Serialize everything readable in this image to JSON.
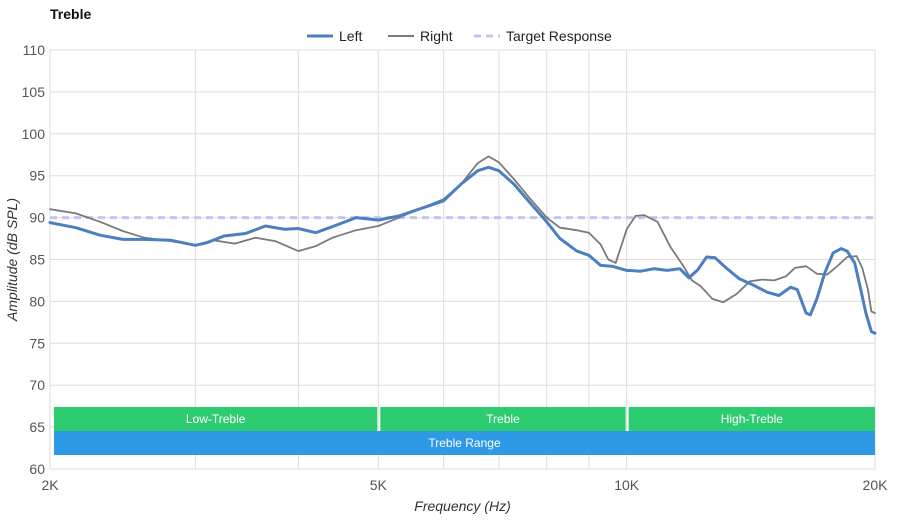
{
  "chart_data": {
    "type": "line",
    "title": "Treble",
    "xlabel": "Frequency (Hz)",
    "ylabel": "Amplitude (dB SPL)",
    "xscale": "log",
    "xlim": [
      2000,
      20000
    ],
    "ylim": [
      60,
      110
    ],
    "yticks": [
      60,
      65,
      70,
      75,
      80,
      85,
      90,
      95,
      100,
      105,
      110
    ],
    "xticks": [
      {
        "value": 2000,
        "label": "2K"
      },
      {
        "value": 5000,
        "label": "5K"
      },
      {
        "value": 10000,
        "label": "10K"
      },
      {
        "value": 20000,
        "label": "20K"
      }
    ],
    "grid_x": [
      2000,
      3000,
      4000,
      5000,
      6000,
      7000,
      8000,
      9000,
      10000,
      20000
    ],
    "grid": true,
    "legend": {
      "position": "top-center",
      "items": [
        {
          "name": "Left",
          "color": "#4a7fc1",
          "style": "solid-thick"
        },
        {
          "name": "Right",
          "color": "#7a7a7a",
          "style": "solid-thin"
        },
        {
          "name": "Target Response",
          "color": "#c4c4f4",
          "style": "dashed"
        }
      ]
    },
    "series": [
      {
        "name": "Left",
        "color": "#4a7fc1",
        "points": [
          [
            2000,
            89.4
          ],
          [
            2150,
            88.8
          ],
          [
            2300,
            87.9
          ],
          [
            2450,
            87.4
          ],
          [
            2600,
            87.4
          ],
          [
            2800,
            87.3
          ],
          [
            3000,
            86.7
          ],
          [
            3100,
            87.0
          ],
          [
            3250,
            87.8
          ],
          [
            3450,
            88.1
          ],
          [
            3650,
            89.0
          ],
          [
            3850,
            88.6
          ],
          [
            4000,
            88.7
          ],
          [
            4200,
            88.2
          ],
          [
            4450,
            89.1
          ],
          [
            4700,
            90.0
          ],
          [
            5000,
            89.7
          ],
          [
            5300,
            90.2
          ],
          [
            5600,
            91.0
          ],
          [
            6000,
            92.0
          ],
          [
            6300,
            94.0
          ],
          [
            6600,
            95.6
          ],
          [
            6800,
            96.0
          ],
          [
            7000,
            95.6
          ],
          [
            7300,
            94.0
          ],
          [
            7600,
            92.0
          ],
          [
            8000,
            89.5
          ],
          [
            8300,
            87.5
          ],
          [
            8700,
            86.0
          ],
          [
            9000,
            85.5
          ],
          [
            9300,
            84.3
          ],
          [
            9600,
            84.2
          ],
          [
            10000,
            83.7
          ],
          [
            10400,
            83.6
          ],
          [
            10800,
            83.9
          ],
          [
            11200,
            83.7
          ],
          [
            11600,
            83.9
          ],
          [
            11900,
            82.8
          ],
          [
            12200,
            83.8
          ],
          [
            12500,
            85.3
          ],
          [
            12800,
            85.2
          ],
          [
            13200,
            84.0
          ],
          [
            13700,
            82.7
          ],
          [
            14200,
            82.0
          ],
          [
            14800,
            81.1
          ],
          [
            15300,
            80.7
          ],
          [
            15800,
            81.7
          ],
          [
            16100,
            81.4
          ],
          [
            16500,
            78.6
          ],
          [
            16700,
            78.4
          ],
          [
            17000,
            80.3
          ],
          [
            17400,
            83.5
          ],
          [
            17800,
            85.8
          ],
          [
            18200,
            86.3
          ],
          [
            18500,
            86.0
          ],
          [
            18900,
            84.6
          ],
          [
            19200,
            81.6
          ],
          [
            19500,
            78.6
          ],
          [
            19800,
            76.4
          ],
          [
            20000,
            76.2
          ]
        ]
      },
      {
        "name": "Right",
        "color": "#7a7a7a",
        "points": [
          [
            2000,
            91.0
          ],
          [
            2150,
            90.5
          ],
          [
            2300,
            89.5
          ],
          [
            2450,
            88.4
          ],
          [
            2600,
            87.6
          ],
          [
            2800,
            87.2
          ],
          [
            3000,
            86.7
          ],
          [
            3150,
            87.3
          ],
          [
            3350,
            86.9
          ],
          [
            3550,
            87.6
          ],
          [
            3750,
            87.2
          ],
          [
            4000,
            86.0
          ],
          [
            4200,
            86.6
          ],
          [
            4400,
            87.6
          ],
          [
            4700,
            88.5
          ],
          [
            5000,
            89.0
          ],
          [
            5300,
            90.0
          ],
          [
            5600,
            91.0
          ],
          [
            6000,
            92.2
          ],
          [
            6300,
            94.0
          ],
          [
            6600,
            96.5
          ],
          [
            6800,
            97.3
          ],
          [
            7000,
            96.6
          ],
          [
            7300,
            94.6
          ],
          [
            7600,
            92.5
          ],
          [
            8000,
            90.0
          ],
          [
            8300,
            88.8
          ],
          [
            8700,
            88.5
          ],
          [
            9000,
            88.2
          ],
          [
            9300,
            86.8
          ],
          [
            9500,
            85.0
          ],
          [
            9700,
            84.6
          ],
          [
            10000,
            88.6
          ],
          [
            10250,
            90.2
          ],
          [
            10500,
            90.3
          ],
          [
            10900,
            89.5
          ],
          [
            11300,
            86.5
          ],
          [
            11700,
            84.3
          ],
          [
            12000,
            82.5
          ],
          [
            12300,
            81.8
          ],
          [
            12700,
            80.3
          ],
          [
            13100,
            79.9
          ],
          [
            13600,
            80.9
          ],
          [
            14100,
            82.4
          ],
          [
            14600,
            82.6
          ],
          [
            15100,
            82.5
          ],
          [
            15600,
            83.0
          ],
          [
            16000,
            84.0
          ],
          [
            16500,
            84.2
          ],
          [
            17000,
            83.3
          ],
          [
            17500,
            83.2
          ],
          [
            18000,
            84.2
          ],
          [
            18500,
            85.3
          ],
          [
            19000,
            85.4
          ],
          [
            19300,
            84.0
          ],
          [
            19600,
            81.5
          ],
          [
            19800,
            78.8
          ],
          [
            20000,
            78.6
          ]
        ]
      },
      {
        "name": "Target Response",
        "color": "#c4c4f4",
        "points": [
          [
            2000,
            90
          ],
          [
            20000,
            90
          ]
        ]
      }
    ],
    "bands": [
      {
        "label": "Low-Treble",
        "from": 2000,
        "to": 5000,
        "row": 1,
        "color": "#2ecc71"
      },
      {
        "label": "Treble",
        "from": 5000,
        "to": 10000,
        "row": 1,
        "color": "#2ecc71"
      },
      {
        "label": "High-Treble",
        "from": 10000,
        "to": 20000,
        "row": 1,
        "color": "#2ecc71"
      },
      {
        "label": "Treble Range",
        "from": 2000,
        "to": 20000,
        "row": 2,
        "color": "#2e9ae6"
      }
    ]
  }
}
